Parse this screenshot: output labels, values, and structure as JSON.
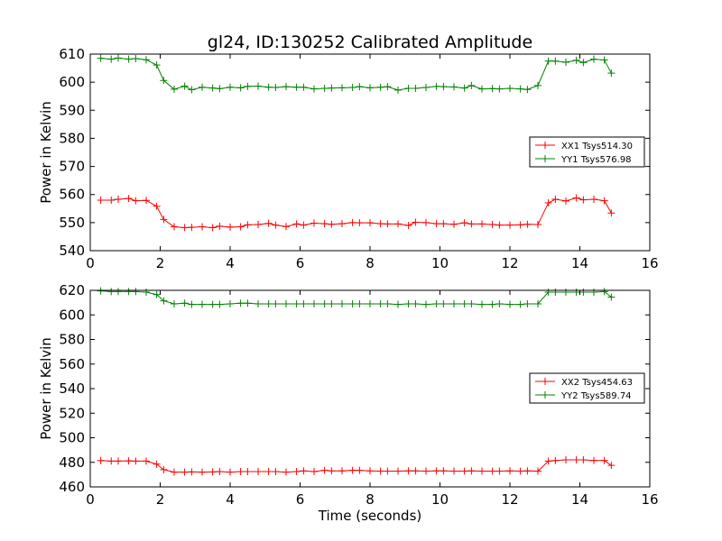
{
  "title": "gl24, ID:130252 Calibrated Amplitude",
  "colors": {
    "xx": "#ff0000",
    "yy": "#008000"
  },
  "chart_data": [
    {
      "type": "line",
      "ylabel": "Power in Kelvin",
      "xlabel": "",
      "xlim": [
        0,
        16
      ],
      "ylim": [
        540,
        610
      ],
      "xticks": [
        0,
        2,
        4,
        6,
        8,
        10,
        12,
        14,
        16
      ],
      "yticks": [
        540,
        550,
        560,
        570,
        580,
        590,
        600,
        610
      ],
      "grid": false,
      "legend_position": "center-right",
      "marker": "plus",
      "series": [
        {
          "name": "XX1 Tsys514.30",
          "color": "#ff0000",
          "x": [
            0.3,
            0.6,
            0.8,
            1.1,
            1.3,
            1.6,
            1.9,
            2.1,
            2.4,
            2.7,
            2.9,
            3.2,
            3.5,
            3.7,
            4.0,
            4.3,
            4.5,
            4.8,
            5.1,
            5.3,
            5.6,
            5.9,
            6.1,
            6.4,
            6.7,
            6.9,
            7.2,
            7.5,
            7.7,
            8.0,
            8.3,
            8.5,
            8.8,
            9.1,
            9.3,
            9.6,
            9.9,
            10.1,
            10.4,
            10.7,
            10.9,
            11.2,
            11.5,
            11.7,
            12.0,
            12.3,
            12.5,
            12.8,
            13.1,
            13.3,
            13.6,
            13.9,
            14.1,
            14.4,
            14.7,
            14.9
          ],
          "values": [
            558.0,
            558.0,
            558.3,
            558.6,
            557.8,
            557.9,
            555.8,
            551.1,
            548.5,
            548.2,
            548.3,
            548.5,
            548.2,
            548.7,
            548.4,
            548.5,
            549.2,
            549.3,
            549.7,
            549.1,
            548.6,
            549.5,
            549.1,
            549.8,
            549.6,
            549.4,
            549.6,
            550.0,
            549.9,
            549.9,
            549.6,
            549.5,
            549.5,
            549.0,
            550.1,
            550.0,
            549.6,
            549.6,
            549.4,
            549.9,
            549.5,
            549.5,
            549.3,
            549.1,
            549.1,
            549.2,
            549.4,
            549.3,
            557.0,
            558.3,
            557.7,
            558.8,
            558.1,
            558.3,
            557.8,
            553.4
          ]
        },
        {
          "name": "YY1 Tsys576.98",
          "color": "#008000",
          "x": [
            0.3,
            0.6,
            0.8,
            1.1,
            1.3,
            1.6,
            1.9,
            2.1,
            2.4,
            2.7,
            2.9,
            3.2,
            3.5,
            3.7,
            4.0,
            4.3,
            4.5,
            4.8,
            5.1,
            5.3,
            5.6,
            5.9,
            6.1,
            6.4,
            6.7,
            6.9,
            7.2,
            7.5,
            7.7,
            8.0,
            8.3,
            8.5,
            8.8,
            9.1,
            9.3,
            9.6,
            9.9,
            10.1,
            10.4,
            10.7,
            10.9,
            11.2,
            11.5,
            11.7,
            12.0,
            12.3,
            12.5,
            12.8,
            13.1,
            13.3,
            13.6,
            13.9,
            14.1,
            14.4,
            14.7,
            14.9
          ],
          "values": [
            608.5,
            608.2,
            608.6,
            608.2,
            608.4,
            608.0,
            606.1,
            600.6,
            597.5,
            598.6,
            597.3,
            598.2,
            597.9,
            597.7,
            598.2,
            598.0,
            598.5,
            598.6,
            598.2,
            598.1,
            598.4,
            598.2,
            598.2,
            597.6,
            597.8,
            597.9,
            598.0,
            598.1,
            598.4,
            598.0,
            598.2,
            598.4,
            597.2,
            597.8,
            597.8,
            598.1,
            598.5,
            598.4,
            598.3,
            597.9,
            598.8,
            597.6,
            597.7,
            597.6,
            597.8,
            597.6,
            597.4,
            598.8,
            607.5,
            607.5,
            607.1,
            607.8,
            607.0,
            608.2,
            607.9,
            603.2
          ]
        }
      ]
    },
    {
      "type": "line",
      "ylabel": "Power in Kelvin",
      "xlabel": "Time (seconds)",
      "xlim": [
        0,
        16
      ],
      "ylim": [
        460,
        620
      ],
      "xticks": [
        0,
        2,
        4,
        6,
        8,
        10,
        12,
        14,
        16
      ],
      "yticks": [
        460,
        480,
        500,
        520,
        540,
        560,
        580,
        600,
        620
      ],
      "grid": false,
      "legend_position": "center-right",
      "marker": "plus",
      "series": [
        {
          "name": "XX2 Tsys454.63",
          "color": "#ff0000",
          "x": [
            0.3,
            0.6,
            0.8,
            1.1,
            1.3,
            1.6,
            1.9,
            2.1,
            2.4,
            2.7,
            2.9,
            3.2,
            3.5,
            3.7,
            4.0,
            4.3,
            4.5,
            4.8,
            5.1,
            5.3,
            5.6,
            5.9,
            6.1,
            6.4,
            6.7,
            6.9,
            7.2,
            7.5,
            7.7,
            8.0,
            8.3,
            8.5,
            8.8,
            9.1,
            9.3,
            9.6,
            9.9,
            10.1,
            10.4,
            10.7,
            10.9,
            11.2,
            11.5,
            11.7,
            12.0,
            12.3,
            12.5,
            12.8,
            13.1,
            13.3,
            13.6,
            13.9,
            14.1,
            14.4,
            14.7,
            14.9
          ],
          "values": [
            481.5,
            481.0,
            481.0,
            481.2,
            481.0,
            481.0,
            478.5,
            474.0,
            472.0,
            472.0,
            472.2,
            472.0,
            472.2,
            472.5,
            472.0,
            472.5,
            472.5,
            472.5,
            472.5,
            472.5,
            472.0,
            472.5,
            473.0,
            472.5,
            473.5,
            473.0,
            473.0,
            473.5,
            473.5,
            473.0,
            472.8,
            472.8,
            472.8,
            473.0,
            473.0,
            472.8,
            473.0,
            473.0,
            472.8,
            472.8,
            473.0,
            472.8,
            472.8,
            472.8,
            473.0,
            472.8,
            473.0,
            472.8,
            481.0,
            481.5,
            482.0,
            482.0,
            482.0,
            481.5,
            481.5,
            477.5
          ]
        },
        {
          "name": "YY2 Tsys589.74",
          "color": "#008000",
          "x": [
            0.3,
            0.6,
            0.8,
            1.1,
            1.3,
            1.6,
            1.9,
            2.1,
            2.4,
            2.7,
            2.9,
            3.2,
            3.5,
            3.7,
            4.0,
            4.3,
            4.5,
            4.8,
            5.1,
            5.3,
            5.6,
            5.9,
            6.1,
            6.4,
            6.7,
            6.9,
            7.2,
            7.5,
            7.7,
            8.0,
            8.3,
            8.5,
            8.8,
            9.1,
            9.3,
            9.6,
            9.9,
            10.1,
            10.4,
            10.7,
            10.9,
            11.2,
            11.5,
            11.7,
            12.0,
            12.3,
            12.5,
            12.8,
            13.1,
            13.3,
            13.6,
            13.9,
            14.1,
            14.4,
            14.7,
            14.9
          ],
          "values": [
            619.5,
            619.0,
            619.0,
            619.0,
            619.0,
            618.5,
            616.5,
            611.5,
            609.0,
            609.5,
            608.5,
            608.5,
            608.5,
            608.5,
            609.0,
            609.5,
            609.5,
            609.0,
            609.0,
            609.0,
            609.0,
            609.0,
            609.0,
            609.0,
            609.0,
            609.0,
            609.0,
            609.0,
            609.0,
            609.0,
            609.0,
            609.0,
            608.5,
            609.0,
            609.0,
            608.5,
            609.0,
            609.0,
            609.0,
            609.0,
            609.0,
            608.5,
            608.5,
            609.0,
            608.5,
            608.5,
            609.0,
            609.0,
            618.5,
            618.5,
            618.5,
            618.5,
            618.5,
            618.5,
            619.0,
            614.5
          ]
        }
      ]
    }
  ]
}
